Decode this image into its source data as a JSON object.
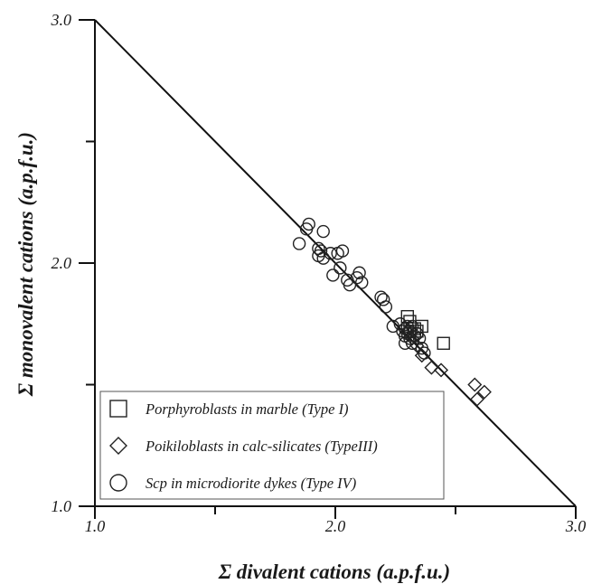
{
  "chart_data": {
    "type": "scatter",
    "title": "",
    "xlabel": "Σ divalent cations (a.p.f.u.)",
    "ylabel": "Σ monovalent cations (a.p.f.u.)",
    "xlim": [
      1.0,
      3.0
    ],
    "ylim": [
      1.0,
      3.0
    ],
    "x_ticks": [
      1.0,
      1.5,
      2.0,
      2.5,
      3.0
    ],
    "y_ticks": [
      1.0,
      1.5,
      2.0,
      2.5,
      3.0
    ],
    "x_tick_labels": [
      "1.0",
      "2.0",
      "3.0"
    ],
    "y_tick_labels": [
      "1.0",
      "2.0",
      "3.0"
    ],
    "grid": false,
    "legend_position": "bottom-left",
    "reference_line": {
      "x": [
        1.0,
        3.0
      ],
      "y": [
        3.0,
        1.0
      ]
    },
    "series": [
      {
        "name": "Porphyroblasts in marble (Type I)",
        "marker": "square",
        "points": [
          [
            2.3,
            1.78
          ],
          [
            2.31,
            1.76
          ],
          [
            2.33,
            1.73
          ],
          [
            2.34,
            1.72
          ],
          [
            2.36,
            1.74
          ],
          [
            2.45,
            1.67
          ]
        ]
      },
      {
        "name": "Poikiloblasts in calc-silicates (TypeIII)",
        "marker": "diamond",
        "points": [
          [
            2.3,
            1.72
          ],
          [
            2.32,
            1.69
          ],
          [
            2.34,
            1.66
          ],
          [
            2.36,
            1.62
          ],
          [
            2.4,
            1.57
          ],
          [
            2.44,
            1.56
          ],
          [
            2.58,
            1.5
          ],
          [
            2.62,
            1.47
          ],
          [
            2.59,
            1.44
          ]
        ]
      },
      {
        "name": "Scp in microdiorite dykes (Type IV)",
        "marker": "circle",
        "points": [
          [
            1.85,
            2.08
          ],
          [
            1.88,
            2.14
          ],
          [
            1.89,
            2.16
          ],
          [
            1.93,
            2.06
          ],
          [
            1.93,
            2.03
          ],
          [
            1.94,
            2.05
          ],
          [
            1.95,
            2.13
          ],
          [
            1.95,
            2.02
          ],
          [
            1.98,
            2.04
          ],
          [
            1.99,
            1.95
          ],
          [
            2.01,
            2.04
          ],
          [
            2.02,
            1.98
          ],
          [
            2.03,
            2.05
          ],
          [
            2.05,
            1.93
          ],
          [
            2.06,
            1.91
          ],
          [
            2.09,
            1.94
          ],
          [
            2.1,
            1.96
          ],
          [
            2.11,
            1.92
          ],
          [
            2.19,
            1.86
          ],
          [
            2.2,
            1.85
          ],
          [
            2.21,
            1.82
          ],
          [
            2.24,
            1.74
          ],
          [
            2.27,
            1.75
          ],
          [
            2.28,
            1.72
          ],
          [
            2.29,
            1.7
          ],
          [
            2.29,
            1.73
          ],
          [
            2.3,
            1.71
          ],
          [
            2.3,
            1.74
          ],
          [
            2.31,
            1.69
          ],
          [
            2.31,
            1.72
          ],
          [
            2.32,
            1.74
          ],
          [
            2.32,
            1.67
          ],
          [
            2.33,
            1.7
          ],
          [
            2.34,
            1.71
          ],
          [
            2.35,
            1.69
          ],
          [
            2.36,
            1.65
          ],
          [
            2.37,
            1.63
          ],
          [
            2.29,
            1.67
          ]
        ]
      }
    ]
  }
}
